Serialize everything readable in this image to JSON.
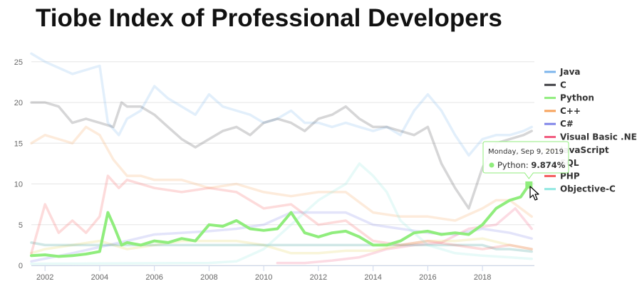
{
  "chart_data": {
    "type": "line",
    "title": "Tiobe Index of Professional Developers",
    "xlabel": "",
    "ylabel": "",
    "xlim": [
      2001.5,
      2019.9
    ],
    "ylim": [
      0,
      27
    ],
    "x_ticks": [
      "2002",
      "2004",
      "2006",
      "2008",
      "2010",
      "2012",
      "2014",
      "2016",
      "2018"
    ],
    "y_ticks": [
      "0",
      "5",
      "10",
      "15",
      "20",
      "25"
    ],
    "grid": true,
    "legend_position": "right",
    "highlighted_series": "Python",
    "tooltip": {
      "date": "Monday, Sep 9, 2019",
      "series": "Python",
      "value": "9.874%"
    },
    "series": [
      {
        "name": "Java",
        "color": "#7cb5ec",
        "points": [
          [
            2001.5,
            26.0
          ],
          [
            2002.0,
            25.0
          ],
          [
            2003.0,
            23.5
          ],
          [
            2004.0,
            24.5
          ],
          [
            2004.3,
            17.5
          ],
          [
            2004.7,
            16.0
          ],
          [
            2005.0,
            18.0
          ],
          [
            2005.5,
            19.0
          ],
          [
            2006.0,
            22.0
          ],
          [
            2006.5,
            20.5
          ],
          [
            2007.0,
            19.5
          ],
          [
            2007.5,
            18.5
          ],
          [
            2008.0,
            21.0
          ],
          [
            2008.5,
            19.5
          ],
          [
            2009.0,
            19.0
          ],
          [
            2009.5,
            18.5
          ],
          [
            2010.0,
            17.5
          ],
          [
            2010.5,
            18.0
          ],
          [
            2011.0,
            19.0
          ],
          [
            2011.5,
            17.5
          ],
          [
            2012.0,
            17.5
          ],
          [
            2012.5,
            17.0
          ],
          [
            2013.0,
            17.5
          ],
          [
            2013.5,
            17.0
          ],
          [
            2014.0,
            16.5
          ],
          [
            2014.5,
            17.0
          ],
          [
            2015.0,
            16.0
          ],
          [
            2015.5,
            19.0
          ],
          [
            2016.0,
            21.0
          ],
          [
            2016.5,
            19.0
          ],
          [
            2017.0,
            16.0
          ],
          [
            2017.5,
            13.5
          ],
          [
            2018.0,
            15.5
          ],
          [
            2018.5,
            16.0
          ],
          [
            2019.0,
            16.0
          ],
          [
            2019.5,
            16.5
          ],
          [
            2019.8,
            17.0
          ]
        ]
      },
      {
        "name": "C",
        "color": "#434348",
        "points": [
          [
            2001.5,
            20.0
          ],
          [
            2002.0,
            20.0
          ],
          [
            2002.5,
            19.5
          ],
          [
            2003.0,
            17.5
          ],
          [
            2003.5,
            18.0
          ],
          [
            2004.0,
            17.5
          ],
          [
            2004.5,
            17.0
          ],
          [
            2004.8,
            20.0
          ],
          [
            2005.0,
            19.5
          ],
          [
            2005.5,
            19.5
          ],
          [
            2006.0,
            18.5
          ],
          [
            2006.5,
            17.0
          ],
          [
            2007.0,
            15.5
          ],
          [
            2007.5,
            14.5
          ],
          [
            2008.0,
            15.5
          ],
          [
            2008.5,
            16.5
          ],
          [
            2009.0,
            17.0
          ],
          [
            2009.5,
            16.0
          ],
          [
            2010.0,
            17.5
          ],
          [
            2010.5,
            18.0
          ],
          [
            2011.0,
            17.5
          ],
          [
            2011.5,
            16.5
          ],
          [
            2012.0,
            18.0
          ],
          [
            2012.5,
            18.5
          ],
          [
            2013.0,
            19.5
          ],
          [
            2013.5,
            18.0
          ],
          [
            2014.0,
            17.0
          ],
          [
            2014.5,
            17.0
          ],
          [
            2015.0,
            16.5
          ],
          [
            2015.5,
            16.0
          ],
          [
            2016.0,
            17.0
          ],
          [
            2016.5,
            12.5
          ],
          [
            2017.0,
            9.5
          ],
          [
            2017.5,
            7.0
          ],
          [
            2018.0,
            12.0
          ],
          [
            2018.5,
            15.0
          ],
          [
            2019.0,
            15.5
          ],
          [
            2019.5,
            16.0
          ],
          [
            2019.8,
            16.5
          ]
        ]
      },
      {
        "name": "Python",
        "color": "#90ed7d",
        "points": [
          [
            2001.5,
            1.2
          ],
          [
            2002.0,
            1.3
          ],
          [
            2002.5,
            1.1
          ],
          [
            2003.0,
            1.2
          ],
          [
            2003.5,
            1.4
          ],
          [
            2004.0,
            1.7
          ],
          [
            2004.3,
            6.5
          ],
          [
            2004.5,
            5.0
          ],
          [
            2004.8,
            2.5
          ],
          [
            2005.0,
            2.8
          ],
          [
            2005.5,
            2.5
          ],
          [
            2006.0,
            3.0
          ],
          [
            2006.5,
            2.8
          ],
          [
            2007.0,
            3.3
          ],
          [
            2007.5,
            3.0
          ],
          [
            2008.0,
            5.0
          ],
          [
            2008.5,
            4.8
          ],
          [
            2009.0,
            5.5
          ],
          [
            2009.5,
            4.5
          ],
          [
            2010.0,
            4.3
          ],
          [
            2010.5,
            4.5
          ],
          [
            2011.0,
            6.5
          ],
          [
            2011.5,
            4.0
          ],
          [
            2012.0,
            3.5
          ],
          [
            2012.5,
            4.0
          ],
          [
            2013.0,
            4.2
          ],
          [
            2013.5,
            3.5
          ],
          [
            2014.0,
            2.5
          ],
          [
            2014.5,
            2.5
          ],
          [
            2015.0,
            3.0
          ],
          [
            2015.5,
            4.0
          ],
          [
            2016.0,
            4.2
          ],
          [
            2016.5,
            3.8
          ],
          [
            2017.0,
            4.0
          ],
          [
            2017.5,
            3.8
          ],
          [
            2018.0,
            5.0
          ],
          [
            2018.5,
            7.0
          ],
          [
            2019.0,
            8.0
          ],
          [
            2019.4,
            8.4
          ],
          [
            2019.7,
            9.874
          ]
        ]
      },
      {
        "name": "C++",
        "color": "#f7a35c",
        "points": [
          [
            2001.5,
            15.0
          ],
          [
            2002.0,
            16.0
          ],
          [
            2002.5,
            15.5
          ],
          [
            2003.0,
            15.0
          ],
          [
            2003.5,
            17.0
          ],
          [
            2004.0,
            16.0
          ],
          [
            2004.5,
            13.0
          ],
          [
            2005.0,
            11.0
          ],
          [
            2005.5,
            11.0
          ],
          [
            2006.0,
            10.5
          ],
          [
            2007.0,
            10.5
          ],
          [
            2008.0,
            9.5
          ],
          [
            2009.0,
            10.0
          ],
          [
            2010.0,
            9.0
          ],
          [
            2011.0,
            8.5
          ],
          [
            2012.0,
            9.0
          ],
          [
            2013.0,
            9.0
          ],
          [
            2014.0,
            6.5
          ],
          [
            2015.0,
            6.0
          ],
          [
            2016.0,
            6.0
          ],
          [
            2017.0,
            5.5
          ],
          [
            2018.0,
            7.0
          ],
          [
            2018.5,
            8.0
          ],
          [
            2019.0,
            8.0
          ],
          [
            2019.8,
            6.0
          ]
        ]
      },
      {
        "name": "C#",
        "color": "#8085e9",
        "points": [
          [
            2001.5,
            0.5
          ],
          [
            2003.0,
            1.5
          ],
          [
            2005.0,
            3.0
          ],
          [
            2006.0,
            3.8
          ],
          [
            2007.0,
            4.0
          ],
          [
            2008.0,
            4.2
          ],
          [
            2009.0,
            4.5
          ],
          [
            2010.0,
            5.0
          ],
          [
            2011.0,
            6.5
          ],
          [
            2012.0,
            6.5
          ],
          [
            2013.0,
            6.5
          ],
          [
            2014.0,
            5.0
          ],
          [
            2015.0,
            4.5
          ],
          [
            2016.0,
            4.0
          ],
          [
            2017.0,
            3.8
          ],
          [
            2018.0,
            4.5
          ],
          [
            2019.0,
            4.0
          ],
          [
            2019.8,
            3.3
          ]
        ]
      },
      {
        "name": "Visual Basic .NET",
        "color": "#f15c80",
        "points": [
          [
            2010.5,
            0.3
          ],
          [
            2011.5,
            0.3
          ],
          [
            2012.5,
            0.6
          ],
          [
            2013.5,
            1.0
          ],
          [
            2014.5,
            2.0
          ],
          [
            2015.5,
            2.5
          ],
          [
            2016.5,
            2.8
          ],
          [
            2017.5,
            4.5
          ],
          [
            2018.5,
            5.0
          ],
          [
            2019.2,
            7.0
          ],
          [
            2019.8,
            4.5
          ]
        ]
      },
      {
        "name": "JavaScript",
        "color": "#e4d354",
        "points": [
          [
            2001.5,
            1.5
          ],
          [
            2002.0,
            2.0
          ],
          [
            2003.0,
            2.5
          ],
          [
            2004.0,
            3.0
          ],
          [
            2005.0,
            2.0
          ],
          [
            2006.0,
            2.5
          ],
          [
            2007.0,
            3.0
          ],
          [
            2008.0,
            3.0
          ],
          [
            2009.0,
            3.0
          ],
          [
            2010.0,
            2.5
          ],
          [
            2011.0,
            1.5
          ],
          [
            2012.0,
            1.5
          ],
          [
            2013.0,
            1.8
          ],
          [
            2014.0,
            1.8
          ],
          [
            2015.0,
            2.5
          ],
          [
            2016.0,
            3.0
          ],
          [
            2017.0,
            3.0
          ],
          [
            2018.0,
            3.3
          ],
          [
            2019.0,
            2.5
          ],
          [
            2019.8,
            2.0
          ]
        ]
      },
      {
        "name": "SQL",
        "color": "#2b908f",
        "points": [
          [
            2001.5,
            2.8
          ],
          [
            2002.0,
            2.5
          ],
          [
            2003.0,
            2.5
          ],
          [
            2004.0,
            2.5
          ],
          [
            2005.0,
            2.5
          ],
          [
            2006.0,
            2.5
          ],
          [
            2007.0,
            2.5
          ],
          [
            2008.0,
            2.5
          ],
          [
            2009.0,
            2.5
          ],
          [
            2010.0,
            2.5
          ],
          [
            2011.0,
            2.5
          ],
          [
            2012.0,
            2.5
          ],
          [
            2013.0,
            2.5
          ],
          [
            2014.0,
            2.5
          ],
          [
            2015.0,
            2.5
          ],
          [
            2016.0,
            2.5
          ],
          [
            2017.0,
            2.5
          ],
          [
            2018.0,
            2.5
          ],
          [
            2018.5,
            2.0
          ],
          [
            2019.0,
            2.0
          ],
          [
            2019.8,
            1.7
          ]
        ]
      },
      {
        "name": "PHP",
        "color": "#f45b5b",
        "points": [
          [
            2001.5,
            1.5
          ],
          [
            2002.0,
            7.5
          ],
          [
            2002.5,
            4.0
          ],
          [
            2003.0,
            5.5
          ],
          [
            2003.5,
            4.0
          ],
          [
            2004.0,
            6.0
          ],
          [
            2004.3,
            11.0
          ],
          [
            2004.7,
            9.5
          ],
          [
            2005.0,
            10.5
          ],
          [
            2006.0,
            9.5
          ],
          [
            2007.0,
            9.0
          ],
          [
            2008.0,
            9.5
          ],
          [
            2009.0,
            9.0
          ],
          [
            2010.0,
            7.0
          ],
          [
            2011.0,
            7.5
          ],
          [
            2012.0,
            5.0
          ],
          [
            2013.0,
            5.5
          ],
          [
            2014.0,
            3.0
          ],
          [
            2015.0,
            2.5
          ],
          [
            2016.0,
            3.0
          ],
          [
            2017.0,
            2.5
          ],
          [
            2018.0,
            2.0
          ],
          [
            2019.0,
            2.5
          ],
          [
            2019.8,
            2.0
          ]
        ]
      },
      {
        "name": "Objective-C",
        "color": "#91e8e1",
        "points": [
          [
            2001.5,
            0.2
          ],
          [
            2008.0,
            0.3
          ],
          [
            2009.0,
            0.5
          ],
          [
            2010.0,
            2.0
          ],
          [
            2011.0,
            5.0
          ],
          [
            2012.0,
            8.0
          ],
          [
            2013.0,
            10.0
          ],
          [
            2013.5,
            12.5
          ],
          [
            2014.0,
            11.0
          ],
          [
            2014.5,
            9.0
          ],
          [
            2015.0,
            5.5
          ],
          [
            2015.5,
            4.0
          ],
          [
            2016.0,
            2.5
          ],
          [
            2017.0,
            1.5
          ],
          [
            2018.0,
            1.2
          ],
          [
            2019.0,
            1.0
          ],
          [
            2019.8,
            0.8
          ]
        ]
      }
    ]
  }
}
